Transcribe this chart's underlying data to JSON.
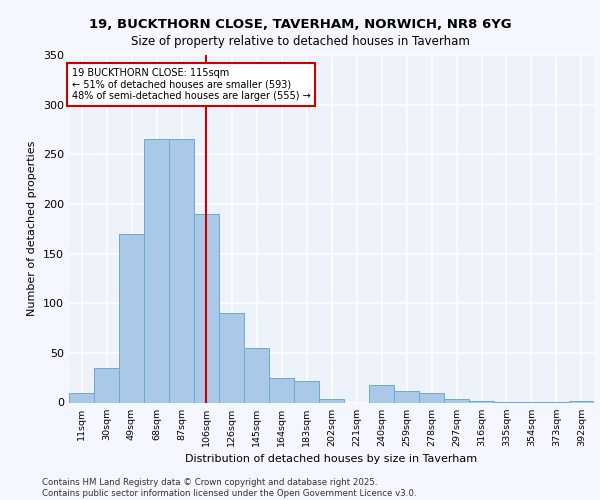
{
  "title_line1": "19, BUCKTHORN CLOSE, TAVERHAM, NORWICH, NR8 6YG",
  "title_line2": "Size of property relative to detached houses in Taverham",
  "xlabel": "Distribution of detached houses by size in Taverham",
  "ylabel": "Number of detached properties",
  "footnote": "Contains HM Land Registry data © Crown copyright and database right 2025.\nContains public sector information licensed under the Open Government Licence v3.0.",
  "bar_labels": [
    "11sqm",
    "30sqm",
    "49sqm",
    "68sqm",
    "87sqm",
    "106sqm",
    "126sqm",
    "145sqm",
    "164sqm",
    "183sqm",
    "202sqm",
    "221sqm",
    "240sqm",
    "259sqm",
    "278sqm",
    "297sqm",
    "316sqm",
    "335sqm",
    "354sqm",
    "373sqm",
    "392sqm"
  ],
  "bar_values": [
    10,
    35,
    170,
    265,
    265,
    190,
    90,
    55,
    25,
    22,
    4,
    0,
    18,
    12,
    10,
    4,
    2,
    1,
    1,
    1,
    2
  ],
  "bar_color": "#aac8e8",
  "bar_edgecolor": "#6aaad4",
  "property_sqm": 115,
  "annotation_text": "19 BUCKTHORN CLOSE: 115sqm\n← 51% of detached houses are smaller (593)\n48% of semi-detached houses are larger (555) →",
  "annotation_box_color": "#ffffff",
  "annotation_box_edgecolor": "#cc0000",
  "vline_color": "#cc0000",
  "ylim": [
    0,
    350
  ],
  "yticks": [
    0,
    50,
    100,
    150,
    200,
    250,
    300,
    350
  ],
  "background_color": "#eef2fb",
  "grid_color": "#ffffff",
  "fig_bg_color": "#f5f7ff"
}
